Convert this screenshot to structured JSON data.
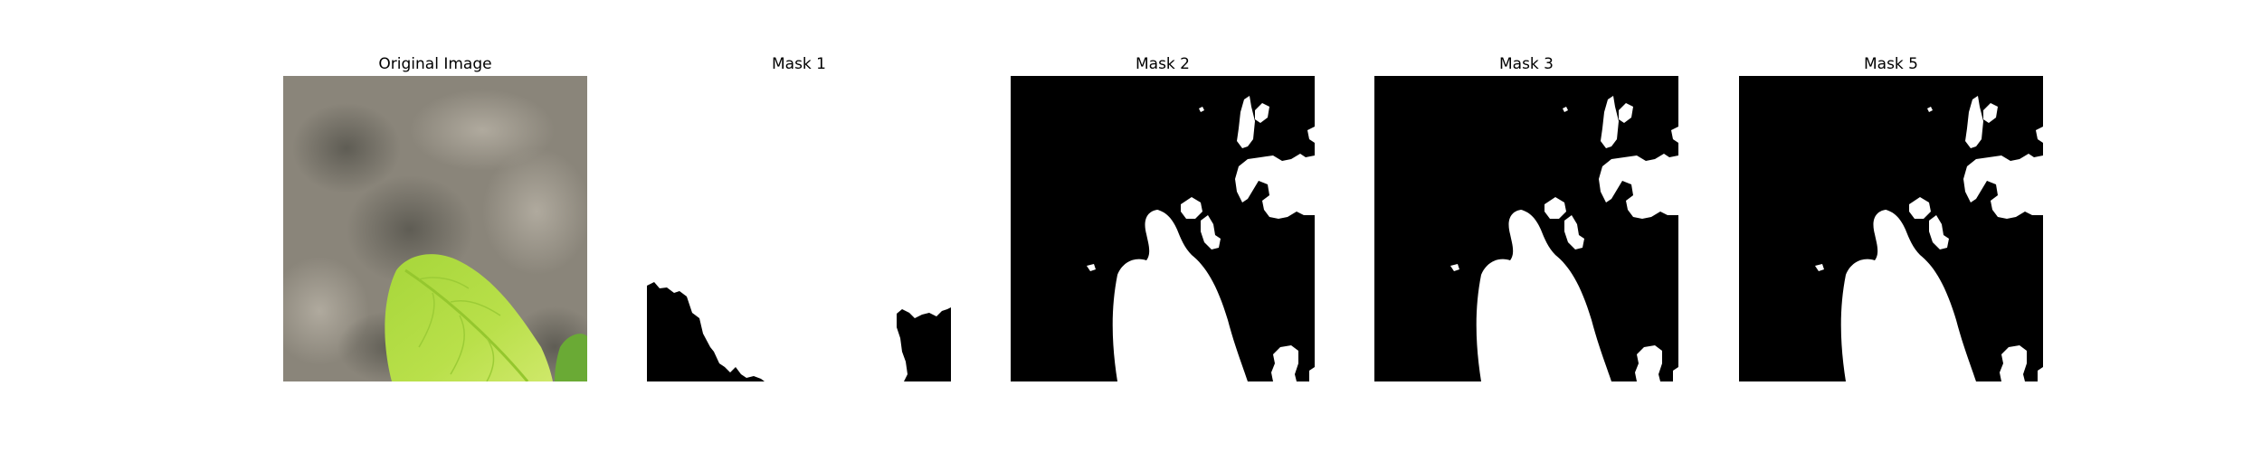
{
  "panels": [
    {
      "title": "Original Image"
    },
    {
      "title": "Mask 1"
    },
    {
      "title": "Mask 2"
    },
    {
      "title": "Mask 3"
    },
    {
      "title": "Mask 5"
    }
  ]
}
